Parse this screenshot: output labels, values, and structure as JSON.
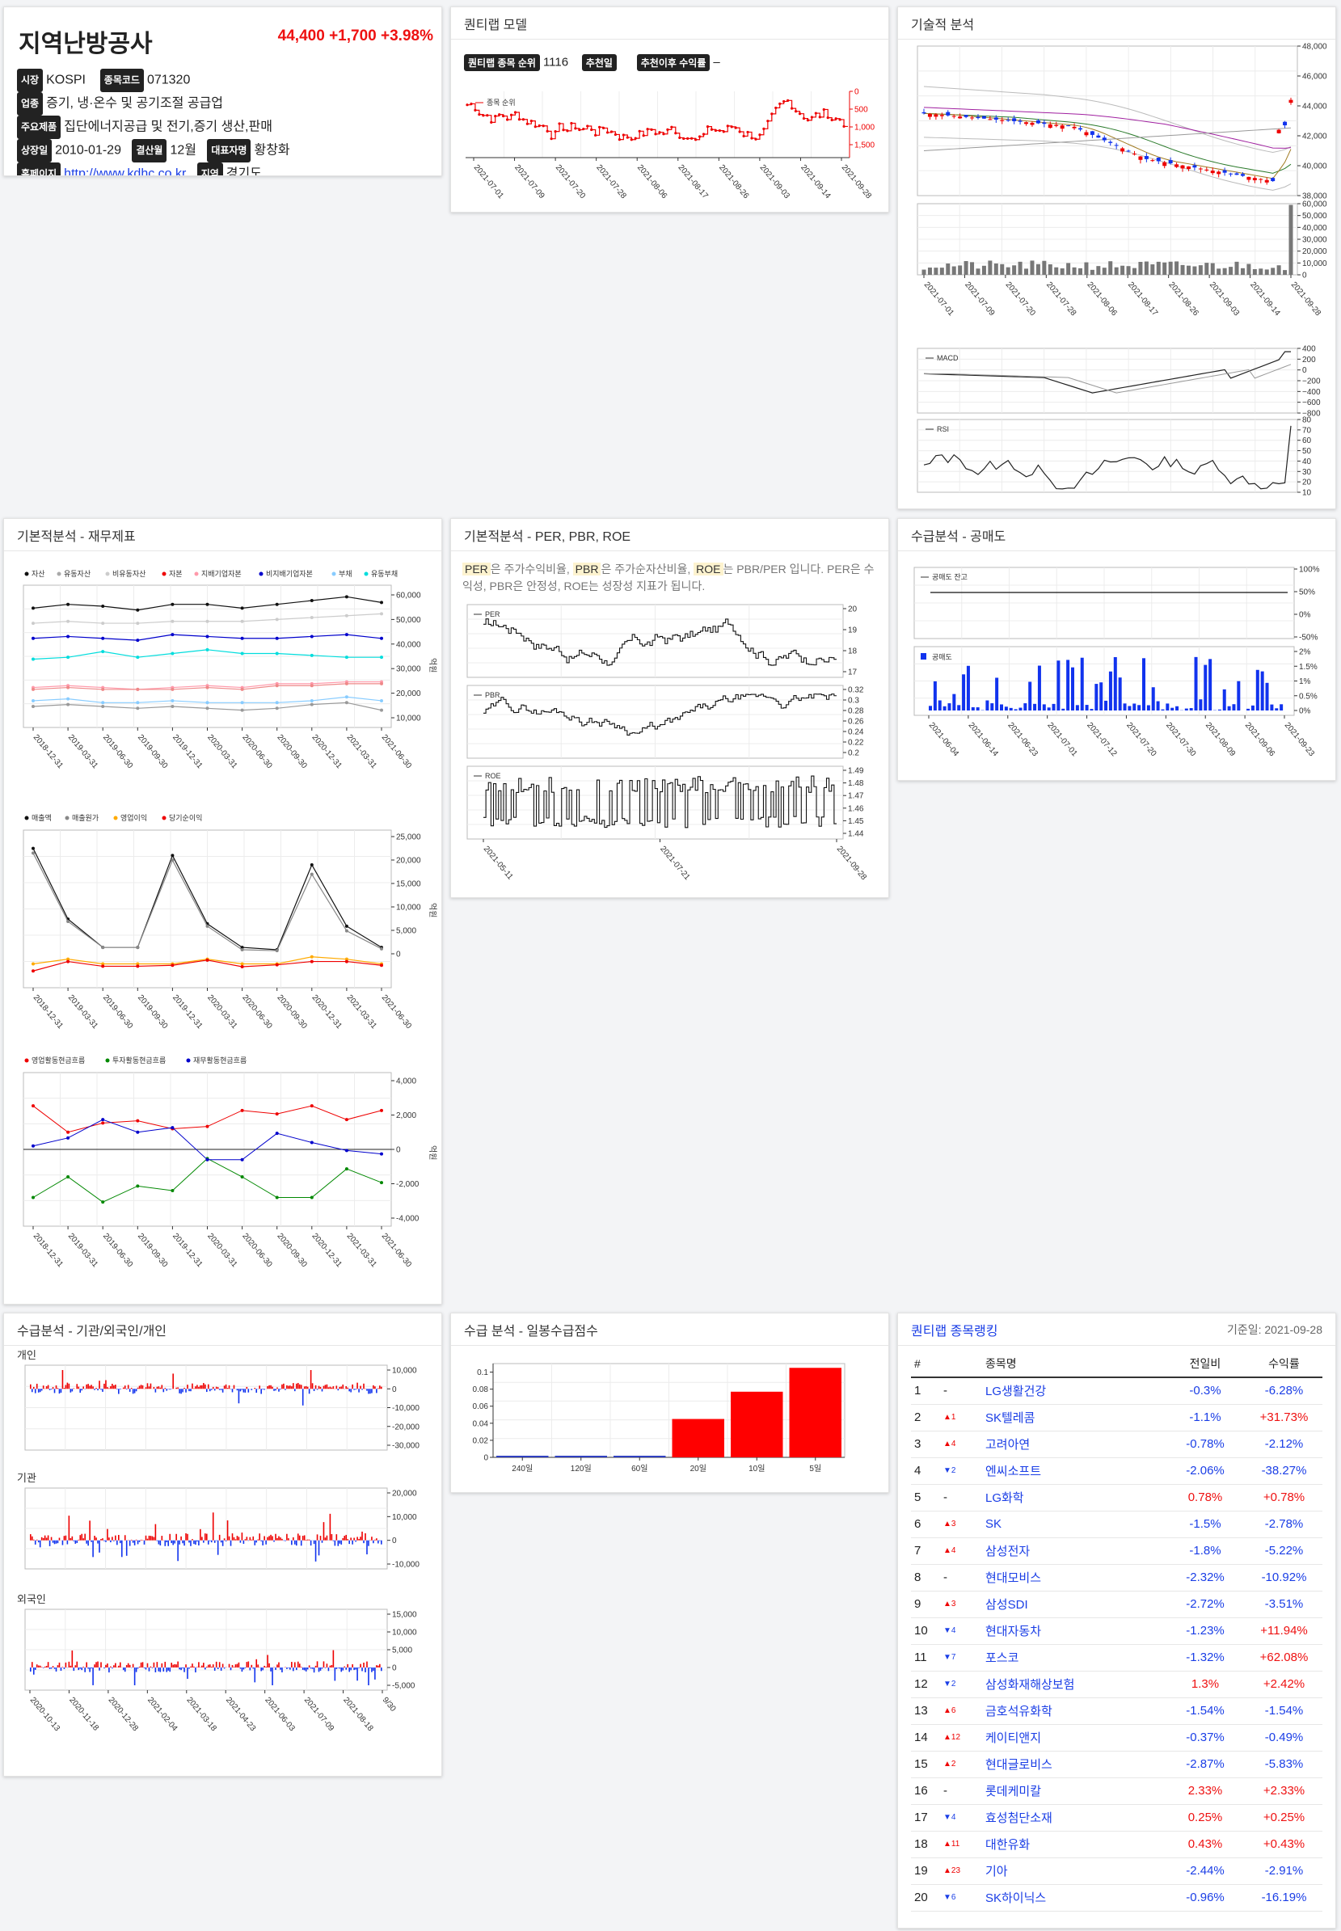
{
  "stock": {
    "name": "지역난방공사",
    "price": "44,400",
    "change": "+1,700",
    "change_pct": "+3.98%",
    "market_label": "시장",
    "market": "KOSPI",
    "code_label": "종목코드",
    "code": "071320",
    "sector_label": "업종",
    "sector": "증기, 냉·온수 및 공기조절 공급업",
    "products_label": "주요제품",
    "products": "집단에너지공급 및 전기,증기 생산,판매",
    "listed_label": "상장일",
    "listed": "2010-01-29",
    "fiscal_label": "결산월",
    "fiscal": "12월",
    "ceo_label": "대표자명",
    "ceo": "황창화",
    "homepage_label": "홈페이지",
    "homepage": "http://www.kdhc.co.kr",
    "region_label": "지역",
    "region": "경기도"
  },
  "quantilab": {
    "title": "퀀티랩 모델",
    "rank_label": "퀀티랩 종목 순위",
    "rank": "1116",
    "rec_date_label": "추천일",
    "rec_return_label": "추천이후 수익률",
    "rec_return": "–",
    "legend": "종목 순위",
    "y_ticks": [
      "0",
      "500",
      "1,000",
      "1,500"
    ],
    "x_ticks": [
      "2021-07-01",
      "2021-07-09",
      "2021-07-20",
      "2021-07-28",
      "2021-08-06",
      "2021-08-17",
      "2021-08-26",
      "2021-09-03",
      "2021-09-14",
      "2021-09-28"
    ]
  },
  "tech": {
    "title": "기술적 분석",
    "price_ticks": [
      "48,000",
      "46,000",
      "44,000",
      "42,000",
      "40,000",
      "38,000"
    ],
    "vol_ticks": [
      "60,000",
      "50,000",
      "40,000",
      "30,000",
      "20,000",
      "10,000",
      "0"
    ],
    "x_ticks": [
      "2021-07-01",
      "2021-07-09",
      "2021-07-20",
      "2021-07-28",
      "2021-08-06",
      "2021-08-17",
      "2021-08-26",
      "2021-09-03",
      "2021-09-14",
      "2021-09-28"
    ],
    "macd_label": "MACD",
    "macd_ticks": [
      "400",
      "200",
      "0",
      "−200",
      "−400",
      "−600",
      "−800"
    ],
    "rsi_label": "RSI",
    "rsi_ticks": [
      "80",
      "70",
      "60",
      "50",
      "40",
      "30",
      "20",
      "10"
    ]
  },
  "fin": {
    "title": "기본적분석 - 재무제표",
    "legend1": [
      "자산",
      "유동자산",
      "비유동자산",
      "자본",
      "지배기업자본",
      "비지배기업자본",
      "부채",
      "유동부채"
    ],
    "ticks1": [
      "60,000",
      "50,000",
      "40,000",
      "30,000",
      "20,000",
      "10,000"
    ],
    "legend2": [
      "매출액",
      "매출원가",
      "영업이익",
      "당기순이익"
    ],
    "ticks2": [
      "25,000",
      "20,000",
      "15,000",
      "10,000",
      "5,000",
      "0"
    ],
    "legend3": [
      "영업활동현금흐름",
      "투자활동현금흐름",
      "재무활동현금흐름"
    ],
    "ticks3": [
      "4,000",
      "2,000",
      "0",
      "-2,000",
      "-4,000"
    ],
    "unit": "억원",
    "x_ticks": [
      "2018-12-31",
      "2019-03-31",
      "2019-06-30",
      "2019-09-30",
      "2019-12-31",
      "2020-03-31",
      "2020-06-30",
      "2020-09-30",
      "2020-12-31",
      "2021-03-31",
      "2021-06-30"
    ]
  },
  "ratio": {
    "title": "기본적분석 - PER, PBR, ROE",
    "desc_per": "PER",
    "desc_1": "은 주가수익비율,",
    "desc_pbr": "PBR",
    "desc_2": "은 주가순자산비율,",
    "desc_roe": "ROE",
    "desc_3": "는 PBR/PER 입니다. PER은 수익성, PBR은 안정성, ROE는 성장성 지표가 됩니다.",
    "per_label": "PER",
    "per_ticks": [
      "20",
      "19",
      "18",
      "17"
    ],
    "pbr_label": "PBR",
    "pbr_ticks": [
      "0.32",
      "0.3",
      "0.28",
      "0.26",
      "0.24",
      "0.22",
      "0.2"
    ],
    "roe_label": "ROE",
    "roe_ticks": [
      "1.49",
      "1.48",
      "1.47",
      "1.46",
      "1.45",
      "1.44"
    ],
    "x_ticks": [
      "2021-05-11",
      "2021-07-21",
      "2021-09-28"
    ]
  },
  "short": {
    "title": "수급분석 - 공매도",
    "balance_label": "공매도 잔고",
    "balance_ticks": [
      "100%",
      "50%",
      "0%",
      "-50%"
    ],
    "vol_label": "공매도",
    "vol_ticks": [
      "2%",
      "1.5%",
      "1%",
      "0.5%",
      "0%"
    ],
    "x_ticks": [
      "2021-06-04",
      "2021-06-14",
      "2021-06-23",
      "2021-07-01",
      "2021-07-12",
      "2021-07-20",
      "2021-07-30",
      "2021-08-09",
      "2021-09-06",
      "2021-09-23"
    ]
  },
  "flow": {
    "title": "수급분석 - 기관/외국인/개인",
    "personal_label": "개인",
    "personal_ticks": [
      "10,000",
      "0",
      "-10,000",
      "-20,000",
      "-30,000"
    ],
    "inst_label": "기관",
    "inst_ticks": [
      "20,000",
      "10,000",
      "0",
      "-10,000"
    ],
    "foreign_label": "외국인",
    "foreign_ticks": [
      "15,000",
      "10,000",
      "5,000",
      "0",
      "-5,000"
    ],
    "x_ticks": [
      "2020-10-13",
      "2020-11-18",
      "2020-12-28",
      "2021-02-04",
      "2021-03-18",
      "2021-04-23",
      "2021-06-03",
      "2021-07-09",
      "2021-08-18",
      "9/30"
    ]
  },
  "score": {
    "title": "수급 분석 - 일봉수급점수",
    "y_ticks": [
      "0.1",
      "0.08",
      "0.06",
      "0.04",
      "0.02",
      "0"
    ]
  },
  "chart_data": {
    "type": "bar",
    "categories": [
      "240일",
      "120일",
      "60일",
      "20일",
      "10일",
      "5일"
    ],
    "values": [
      0,
      0,
      0,
      0.045,
      0.077,
      0.105
    ],
    "ylim": [
      0,
      0.11
    ]
  },
  "ranking": {
    "title": "퀀티랩 종목랭킹",
    "date": "기준일: 2021-09-28",
    "headers": [
      "#",
      "종목명",
      "전일비",
      "수익률"
    ],
    "rows": [
      {
        "n": "1",
        "mv": "-",
        "name": "LG생활건강",
        "chg": "-0.3%",
        "ret": "-6.28%"
      },
      {
        "n": "2",
        "mv": "▲1",
        "name": "SK텔레콤",
        "chg": "-1.1%",
        "ret": "+31.73%"
      },
      {
        "n": "3",
        "mv": "▲4",
        "name": "고려아연",
        "chg": "-0.78%",
        "ret": "-2.12%"
      },
      {
        "n": "4",
        "mv": "▼2",
        "name": "엔씨소프트",
        "chg": "-2.06%",
        "ret": "-38.27%"
      },
      {
        "n": "5",
        "mv": "-",
        "name": "LG화학",
        "chg": "0.78%",
        "ret": "+0.78%"
      },
      {
        "n": "6",
        "mv": "▲3",
        "name": "SK",
        "chg": "-1.5%",
        "ret": "-2.78%"
      },
      {
        "n": "7",
        "mv": "▲4",
        "name": "삼성전자",
        "chg": "-1.8%",
        "ret": "-5.22%"
      },
      {
        "n": "8",
        "mv": "-",
        "name": "현대모비스",
        "chg": "-2.32%",
        "ret": "-10.92%"
      },
      {
        "n": "9",
        "mv": "▲3",
        "name": "삼성SDI",
        "chg": "-2.72%",
        "ret": "-3.51%"
      },
      {
        "n": "10",
        "mv": "▼4",
        "name": "현대자동차",
        "chg": "-1.23%",
        "ret": "+11.94%"
      },
      {
        "n": "11",
        "mv": "▼7",
        "name": "포스코",
        "chg": "-1.32%",
        "ret": "+62.08%"
      },
      {
        "n": "12",
        "mv": "▼2",
        "name": "삼성화재해상보험",
        "chg": "1.3%",
        "ret": "+2.42%"
      },
      {
        "n": "13",
        "mv": "▲6",
        "name": "금호석유화학",
        "chg": "-1.54%",
        "ret": "-1.54%"
      },
      {
        "n": "14",
        "mv": "▲12",
        "name": "케이티앤지",
        "chg": "-0.37%",
        "ret": "-0.49%"
      },
      {
        "n": "15",
        "mv": "▲2",
        "name": "현대글로비스",
        "chg": "-2.87%",
        "ret": "-5.83%"
      },
      {
        "n": "16",
        "mv": "-",
        "name": "롯데케미칼",
        "chg": "2.33%",
        "ret": "+2.33%"
      },
      {
        "n": "17",
        "mv": "▼4",
        "name": "효성첨단소재",
        "chg": "0.25%",
        "ret": "+0.25%"
      },
      {
        "n": "18",
        "mv": "▲11",
        "name": "대한유화",
        "chg": "0.43%",
        "ret": "+0.43%"
      },
      {
        "n": "19",
        "mv": "▲23",
        "name": "기아",
        "chg": "-2.44%",
        "ret": "-2.91%"
      },
      {
        "n": "20",
        "mv": "▼6",
        "name": "SK하이닉스",
        "chg": "-0.96%",
        "ret": "-16.19%"
      }
    ]
  },
  "colors": {
    "up": "#ee1111",
    "down": "#1a3ee6",
    "accent": "#1a3ee6"
  }
}
